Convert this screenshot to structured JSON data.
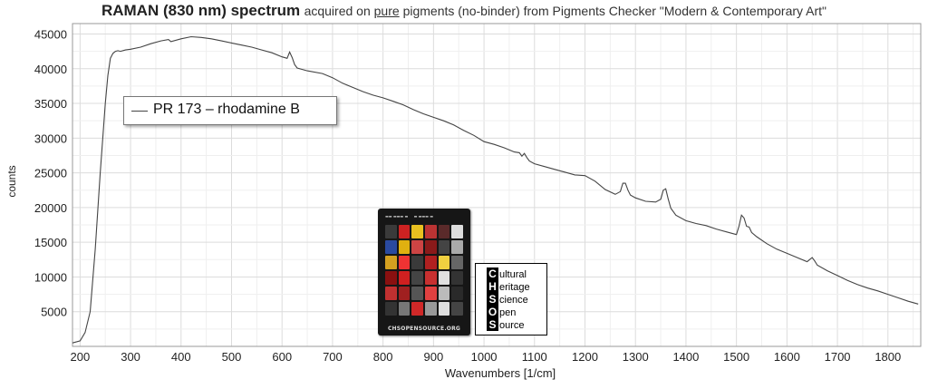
{
  "title": {
    "main": "RAMAN (830 nm) spectrum",
    "sub_before": "acquired on",
    "sub_underlined": "pure",
    "sub_after": "pigments (no-binder) from Pigments Checker \"Modern & Contemporary Art\""
  },
  "colors": {
    "line": "#444444",
    "grid": "#e3e3e3",
    "axis": "#888888"
  },
  "chart_data": {
    "type": "line",
    "xlabel": "Wavenumbers [1/cm]",
    "ylabel": "counts",
    "xlim": [
      185,
      1865
    ],
    "ylim": [
      0,
      46500
    ],
    "x_ticks": [
      200,
      300,
      400,
      500,
      600,
      700,
      800,
      900,
      1000,
      1100,
      1200,
      1300,
      1400,
      1500,
      1600,
      1700,
      1800
    ],
    "y_ticks": [
      5000,
      10000,
      15000,
      20000,
      25000,
      30000,
      35000,
      40000,
      45000
    ],
    "grid": true,
    "legend_position": "top-left",
    "series": [
      {
        "name": "PR 173 – rhodamine B",
        "x": [
          185,
          200,
          210,
          220,
          230,
          240,
          250,
          255,
          260,
          265,
          270,
          275,
          280,
          290,
          300,
          320,
          340,
          360,
          375,
          380,
          400,
          420,
          440,
          460,
          480,
          500,
          520,
          540,
          560,
          580,
          600,
          610,
          615,
          620,
          625,
          630,
          650,
          680,
          700,
          720,
          740,
          760,
          780,
          800,
          820,
          840,
          860,
          880,
          900,
          920,
          940,
          960,
          980,
          1000,
          1020,
          1040,
          1060,
          1070,
          1075,
          1080,
          1085,
          1090,
          1100,
          1120,
          1140,
          1160,
          1180,
          1200,
          1220,
          1240,
          1260,
          1270,
          1275,
          1280,
          1285,
          1290,
          1300,
          1320,
          1340,
          1350,
          1355,
          1360,
          1365,
          1370,
          1380,
          1400,
          1420,
          1440,
          1460,
          1480,
          1500,
          1505,
          1510,
          1515,
          1520,
          1525,
          1530,
          1540,
          1560,
          1580,
          1600,
          1620,
          1640,
          1645,
          1650,
          1655,
          1660,
          1680,
          1700,
          1720,
          1740,
          1760,
          1780,
          1800,
          1820,
          1840,
          1860
        ],
        "values": [
          500,
          800,
          2000,
          5000,
          14000,
          25000,
          35000,
          39000,
          41500,
          42200,
          42500,
          42600,
          42500,
          42700,
          42800,
          43100,
          43600,
          44000,
          44200,
          43900,
          44300,
          44600,
          44500,
          44300,
          44000,
          43700,
          43400,
          43100,
          42700,
          42300,
          41700,
          41500,
          42400,
          41600,
          40600,
          40100,
          39700,
          39300,
          38700,
          37900,
          37300,
          36700,
          36200,
          35800,
          35300,
          34800,
          34100,
          33500,
          33000,
          32500,
          31900,
          31100,
          30400,
          29500,
          29100,
          28600,
          28000,
          27900,
          27400,
          27800,
          27200,
          26700,
          26300,
          25900,
          25500,
          25100,
          24700,
          24600,
          23800,
          22600,
          21900,
          22300,
          23500,
          23500,
          22500,
          21800,
          21400,
          20900,
          20800,
          21200,
          22500,
          22700,
          21200,
          19900,
          18900,
          18100,
          17700,
          17400,
          16900,
          16500,
          16100,
          17300,
          18900,
          18500,
          17300,
          17200,
          16400,
          15800,
          14800,
          14000,
          13400,
          12800,
          12200,
          12500,
          12800,
          12300,
          11700,
          10900,
          10200,
          9500,
          8900,
          8400,
          8000,
          7500,
          7000,
          6500,
          6100
        ]
      }
    ]
  },
  "inset": {
    "checker_footer": "CHSOPENSOURCE.ORG",
    "logo_lines": [
      {
        "cap": "C",
        "rest": "ultural"
      },
      {
        "cap": "H",
        "rest": "eritage"
      },
      {
        "cap": "S",
        "rest": "cience"
      },
      {
        "cap": "O",
        "rest": "pen"
      },
      {
        "cap": "S",
        "rest": "ource"
      }
    ]
  }
}
